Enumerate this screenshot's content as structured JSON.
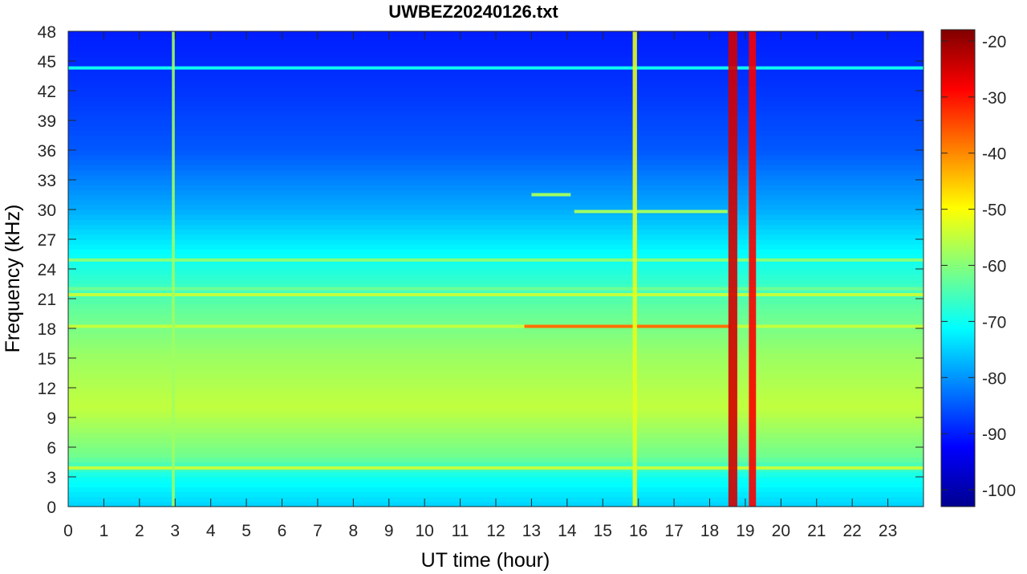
{
  "chart_data": {
    "type": "heatmap",
    "title": "UWBEZ20240126.txt",
    "xlabel": "UT time (hour)",
    "ylabel": "Frequency (kHz)",
    "xlim": [
      0,
      24
    ],
    "ylim": [
      0,
      48
    ],
    "x_ticks": [
      "0",
      "1",
      "2",
      "3",
      "4",
      "5",
      "6",
      "7",
      "8",
      "9",
      "10",
      "11",
      "12",
      "13",
      "14",
      "15",
      "16",
      "17",
      "18",
      "19",
      "20",
      "21",
      "22",
      "23"
    ],
    "y_ticks": [
      "0",
      "3",
      "6",
      "9",
      "12",
      "15",
      "18",
      "21",
      "24",
      "27",
      "30",
      "33",
      "36",
      "39",
      "42",
      "45",
      "48"
    ],
    "colorbar": {
      "colormap": "jet",
      "range": [
        -103,
        -18
      ],
      "ticks": [
        "-20",
        "-30",
        "-40",
        "-50",
        "-60",
        "-70",
        "-80",
        "-90",
        "-100"
      ]
    },
    "base_levels_db": [
      {
        "freq_khz": 0,
        "level": -75
      },
      {
        "freq_khz": 3,
        "level": -70
      },
      {
        "freq_khz": 5,
        "level": -62
      },
      {
        "freq_khz": 10,
        "level": -55
      },
      {
        "freq_khz": 15,
        "level": -58
      },
      {
        "freq_khz": 20,
        "level": -63
      },
      {
        "freq_khz": 25,
        "level": -70
      },
      {
        "freq_khz": 30,
        "level": -78
      },
      {
        "freq_khz": 36,
        "level": -85
      },
      {
        "freq_khz": 42,
        "level": -88
      },
      {
        "freq_khz": 48,
        "level": -90
      }
    ],
    "horizontal_lines": [
      {
        "freq_khz": 18.2,
        "start_h": 0,
        "end_h": 24,
        "level": -55
      },
      {
        "freq_khz": 18.2,
        "start_h": 12.8,
        "end_h": 18.6,
        "level": -38
      },
      {
        "freq_khz": 21.4,
        "start_h": 0,
        "end_h": 24,
        "level": -55
      },
      {
        "freq_khz": 22.0,
        "start_h": 0,
        "end_h": 24,
        "level": -62
      },
      {
        "freq_khz": 24.9,
        "start_h": 0,
        "end_h": 24,
        "level": -60
      },
      {
        "freq_khz": 3.9,
        "start_h": 0,
        "end_h": 24,
        "level": -55
      },
      {
        "freq_khz": 44.3,
        "start_h": 0,
        "end_h": 24,
        "level": -70
      },
      {
        "freq_khz": 29.8,
        "start_h": 14.2,
        "end_h": 18.5,
        "level": -58
      },
      {
        "freq_khz": 31.5,
        "start_h": 13.0,
        "end_h": 14.1,
        "level": -58
      }
    ],
    "vertical_events": [
      {
        "time_h": 18.65,
        "width_h": 0.25,
        "level": -25
      },
      {
        "time_h": 19.2,
        "width_h": 0.2,
        "level": -28
      },
      {
        "time_h": 15.9,
        "width_h": 0.12,
        "level": -52
      },
      {
        "time_h": 2.95,
        "width_h": 0.08,
        "level": -58
      }
    ]
  }
}
